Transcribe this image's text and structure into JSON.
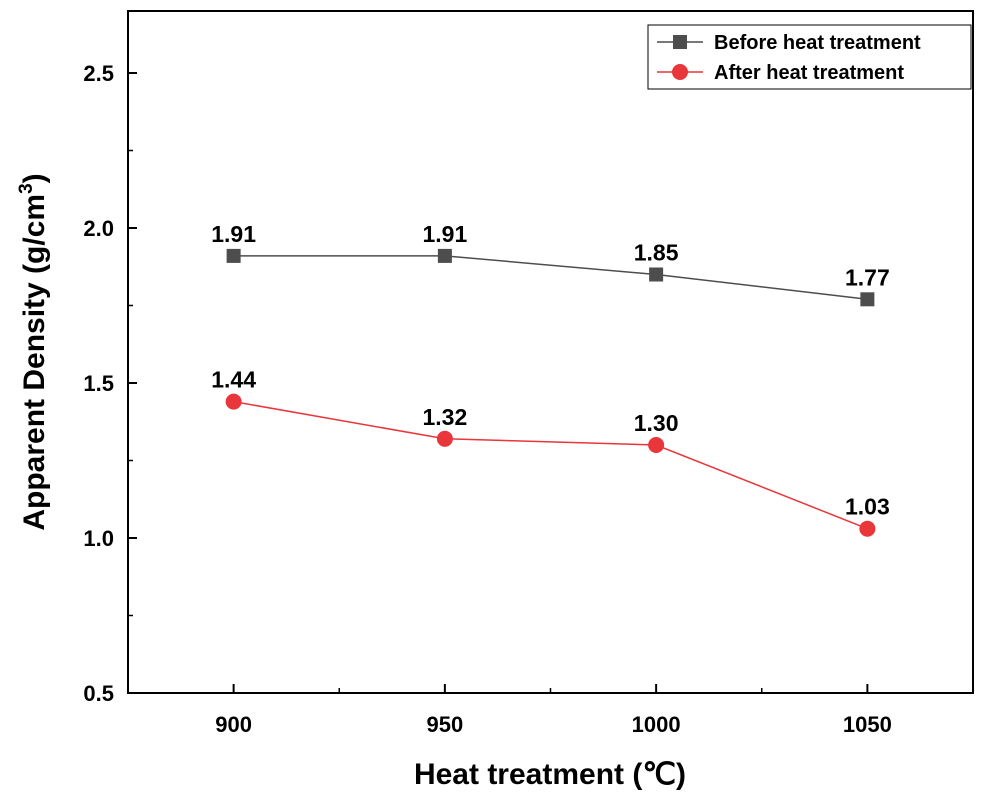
{
  "chart_data": {
    "type": "line",
    "x": [
      900,
      950,
      1000,
      1050
    ],
    "xticks": [
      "900",
      "950",
      "1000",
      "1050"
    ],
    "xlim": [
      875,
      1075
    ],
    "ylim": [
      0.5,
      2.7
    ],
    "yticks": [
      "0.5",
      "1.0",
      "1.5",
      "2.0",
      "2.5"
    ],
    "ytick_values": [
      0.5,
      1.0,
      1.5,
      2.0,
      2.5
    ],
    "xlabel": "Heat treatment (℃)",
    "ylabel_main": "Apparent Density (g/cm",
    "ylabel_sup": "3",
    "ylabel_end": ")",
    "legend_position": "top-right",
    "grid": false,
    "series": [
      {
        "name": "Before heat treatment",
        "marker": "square",
        "color": "#4d4d4d",
        "values": [
          1.91,
          1.91,
          1.85,
          1.77
        ],
        "labels": [
          "1.91",
          "1.91",
          "1.85",
          "1.77"
        ]
      },
      {
        "name": "After heat treatment",
        "marker": "circle",
        "color": "#e8363a",
        "values": [
          1.44,
          1.32,
          1.3,
          1.03
        ],
        "labels": [
          "1.44",
          "1.32",
          "1.30",
          "1.03"
        ]
      }
    ]
  }
}
